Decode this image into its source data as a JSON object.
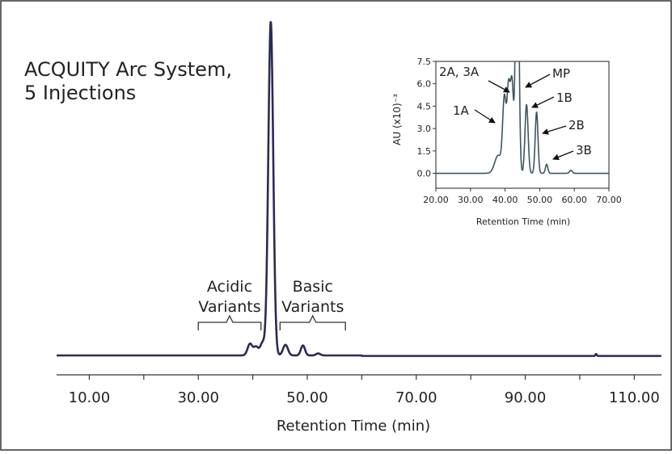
{
  "chart_data": [
    {
      "type": "line",
      "title_lines": [
        "ACQUITY Arc System,",
        "5 Injections"
      ],
      "xlabel": "Retention Time (min)",
      "ylabel": "",
      "xlim": [
        4,
        115
      ],
      "ylim": [
        0,
        1.0
      ],
      "x_ticks": [
        "10.00",
        "30.00",
        "50.00",
        "70.00",
        "90.00",
        "110.00"
      ],
      "grid": false,
      "series_color": "#2b2a57",
      "peaks": [
        {
          "center": 43.3,
          "height": 1.0,
          "width": 0.45
        },
        {
          "center": 39.5,
          "height": 0.035,
          "width": 0.45
        },
        {
          "center": 40.6,
          "height": 0.025,
          "width": 0.4
        },
        {
          "center": 41.8,
          "height": 0.038,
          "width": 0.45
        },
        {
          "center": 46.0,
          "height": 0.032,
          "width": 0.45
        },
        {
          "center": 49.2,
          "height": 0.03,
          "width": 0.38
        },
        {
          "center": 52.0,
          "height": 0.006,
          "width": 0.4
        },
        {
          "center": 103.0,
          "height": 0.006,
          "width": 0.12
        }
      ],
      "annotations": [
        {
          "lines": [
            "Acidic",
            "Variants"
          ],
          "bracket_x": [
            30,
            41.5
          ]
        },
        {
          "lines": [
            "Basic",
            "Variants"
          ],
          "bracket_x": [
            45,
            57
          ]
        }
      ]
    },
    {
      "type": "line",
      "xlabel": "Retention Time (min)",
      "ylabel": "AU (x10)⁻³",
      "xlim": [
        20,
        70
      ],
      "ylim": [
        -1,
        7.5
      ],
      "x_ticks": [
        "20.00",
        "30.00",
        "40.00",
        "50.00",
        "60.00",
        "70.00"
      ],
      "y_ticks": [
        "0.0",
        "1.5",
        "3.0",
        "4.5",
        "6.0",
        "7.5"
      ],
      "grid": false,
      "series_color": "#3d5560",
      "peaks": [
        {
          "center": 38.0,
          "height": 1.2,
          "width": 1.0
        },
        {
          "center": 39.8,
          "height": 4.9,
          "width": 0.5
        },
        {
          "center": 41.0,
          "height": 5.5,
          "width": 0.45
        },
        {
          "center": 42.0,
          "height": 5.9,
          "width": 0.45
        },
        {
          "center": 43.5,
          "height": 20.0,
          "width": 0.45
        },
        {
          "center": 46.2,
          "height": 4.6,
          "width": 0.45
        },
        {
          "center": 49.1,
          "height": 4.1,
          "width": 0.4
        },
        {
          "center": 52.0,
          "height": 0.6,
          "width": 0.35
        },
        {
          "center": 59.0,
          "height": 0.2,
          "width": 0.4
        }
      ],
      "peak_labels": [
        {
          "label": "1A",
          "x": 39.8
        },
        {
          "label": "2A, 3A",
          "x": 41.5
        },
        {
          "label": "MP",
          "x": 43.5
        },
        {
          "label": "1B",
          "x": 46.2
        },
        {
          "label": "2B",
          "x": 49.1
        },
        {
          "label": "3B",
          "x": 52.0
        }
      ]
    }
  ]
}
